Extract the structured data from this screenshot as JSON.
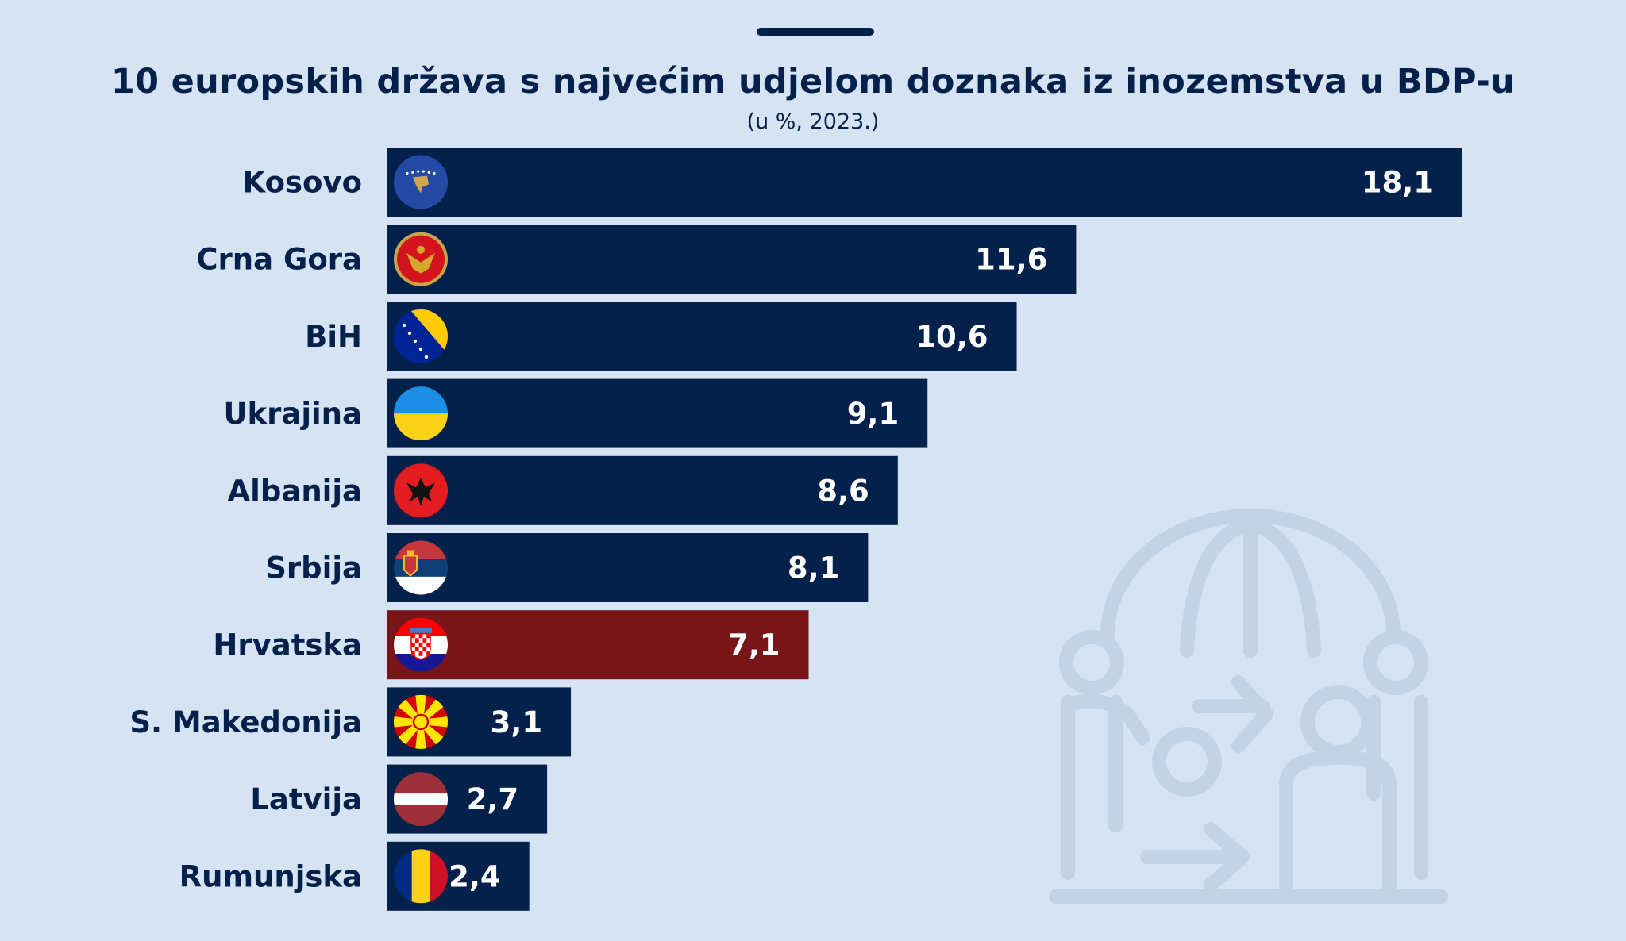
{
  "chart_data": {
    "type": "bar",
    "orientation": "horizontal",
    "title": "10 europskih država s najvećim udjelom doznaka iz inozemstva u BDP-u",
    "subtitle": "(u %, 2023.)",
    "categories": [
      "Kosovo",
      "Crna Gora",
      "BiH",
      "Ukrajina",
      "Albanija",
      "Srbija",
      "Hrvatska",
      "S. Makedonija",
      "Latvija",
      "Rumunjska"
    ],
    "values": [
      18.1,
      11.6,
      10.6,
      9.1,
      8.6,
      8.1,
      7.1,
      3.1,
      2.7,
      2.4
    ],
    "value_labels": [
      "18,1",
      "11,6",
      "10,6",
      "9,1",
      "8,6",
      "8,1",
      "7,1",
      "3,1",
      "2,7",
      "2,4"
    ],
    "flag_icons": [
      "kosovo-flag-icon",
      "montenegro-flag-icon",
      "bosnia-flag-icon",
      "ukraine-flag-icon",
      "albania-flag-icon",
      "serbia-flag-icon",
      "croatia-flag-icon",
      "north-macedonia-flag-icon",
      "latvia-flag-icon",
      "romania-flag-icon"
    ],
    "highlight_category": "Hrvatska",
    "xlim": [
      0,
      18.1
    ],
    "grid": false,
    "legend": "none",
    "colors": {
      "bar": "#03214a",
      "highlight": "#771518",
      "background": "#d6e3f2",
      "text": "#03214a",
      "value_text": "#ffffff"
    }
  },
  "decoration": {
    "background_icon": "remittance-globe-people-icon"
  }
}
